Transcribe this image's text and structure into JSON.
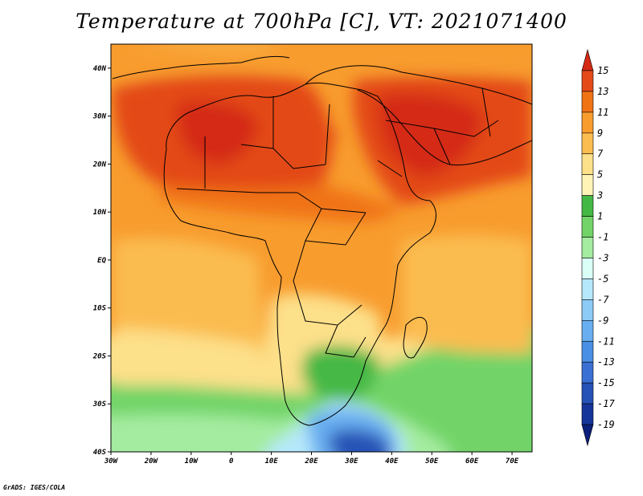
{
  "title": "Temperature at 700hPa [C], VT: 2021071400",
  "credit": "GrADS: IGES/COLA",
  "map": {
    "variable": "Temperature at 700hPa",
    "units": "C",
    "valid_time": "2021071400",
    "lon_labels": [
      "30W",
      "20W",
      "10W",
      "0",
      "10E",
      "20E",
      "30E",
      "40E",
      "50E",
      "60E",
      "70E"
    ],
    "lat_labels": [
      "40N",
      "30N",
      "20N",
      "10N",
      "EQ",
      "10S",
      "20S",
      "30S",
      "40S"
    ]
  },
  "colorbar": {
    "labels": [
      "15",
      "13",
      "11",
      "9",
      "7",
      "5",
      "3",
      "1",
      "-1",
      "-3",
      "-5",
      "-7",
      "-9",
      "-11",
      "-13",
      "-15",
      "-17",
      "-19"
    ],
    "colors": [
      "#d42a14",
      "#e34a18",
      "#f07314",
      "#f89c2e",
      "#fbbc50",
      "#fde08a",
      "#fff4b6",
      "#44b844",
      "#72d468",
      "#a4eca0",
      "#dafff6",
      "#b6e8fb",
      "#8ccbf5",
      "#68aef0",
      "#4a8fe6",
      "#3a70d4",
      "#2552b6",
      "#16359a",
      "#0b1f7a"
    ]
  }
}
